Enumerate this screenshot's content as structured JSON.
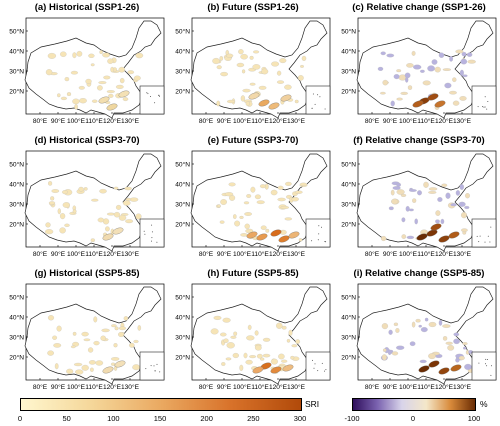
{
  "panels": [
    {
      "title": "(a) Historical (SSP1-26)",
      "scale": "sri",
      "hot": [
        {
          "x": 104,
          "y": 93,
          "c": "#efd7a0"
        },
        {
          "x": 96,
          "y": 86,
          "c": "#f3deae"
        },
        {
          "x": 116,
          "y": 80,
          "c": "#f4e1b5"
        }
      ]
    },
    {
      "title": "(b) Future (SSP1-26)",
      "scale": "sri",
      "hot": [
        {
          "x": 90,
          "y": 89,
          "c": "#e9a960"
        },
        {
          "x": 100,
          "y": 92,
          "c": "#eebb7a"
        },
        {
          "x": 112,
          "y": 84,
          "c": "#f0d09e"
        },
        {
          "x": 80,
          "y": 82,
          "c": "#f2d8aa"
        }
      ]
    },
    {
      "title": "(c) Relative change (SSP1-26)",
      "scale": "rel",
      "hot": [
        {
          "x": 84,
          "y": 87,
          "c": "#8a3d08"
        },
        {
          "x": 93,
          "y": 83,
          "c": "#a04d12"
        },
        {
          "x": 100,
          "y": 90,
          "c": "#c6742c"
        },
        {
          "x": 78,
          "y": 90,
          "c": "#b35e1c"
        }
      ]
    },
    {
      "title": "(d) Historical (SSP3-70)",
      "scale": "sri",
      "hot": [
        {
          "x": 100,
          "y": 90,
          "c": "#f1dbb0"
        },
        {
          "x": 110,
          "y": 84,
          "c": "#f3e0b8"
        }
      ]
    },
    {
      "title": "(e) Future (SSP3-70)",
      "scale": "sri",
      "hot": [
        {
          "x": 102,
          "y": 86,
          "c": "#d86c1c"
        },
        {
          "x": 110,
          "y": 92,
          "c": "#de7e2c"
        },
        {
          "x": 88,
          "y": 90,
          "c": "#e79a4f"
        },
        {
          "x": 78,
          "y": 88,
          "c": "#eaa762"
        },
        {
          "x": 120,
          "y": 88,
          "c": "#ecb576"
        }
      ]
    },
    {
      "title": "(f) Relative change (SSP3-70)",
      "scale": "rel",
      "hot": [
        {
          "x": 82,
          "y": 90,
          "c": "#6a2c04"
        },
        {
          "x": 92,
          "y": 86,
          "c": "#7d3606"
        },
        {
          "x": 104,
          "y": 92,
          "c": "#8e420c"
        },
        {
          "x": 114,
          "y": 88,
          "c": "#b05c18"
        },
        {
          "x": 96,
          "y": 80,
          "c": "#a14e12"
        }
      ]
    },
    {
      "title": "(g) Historical (SSP5-85)",
      "scale": "sri",
      "hot": [
        {
          "x": 100,
          "y": 90,
          "c": "#f1dbb0"
        },
        {
          "x": 112,
          "y": 84,
          "c": "#f3e0b8"
        }
      ]
    },
    {
      "title": "(h) Future (SSP5-85)",
      "scale": "sri",
      "hot": [
        {
          "x": 92,
          "y": 86,
          "c": "#d8701e"
        },
        {
          "x": 102,
          "y": 90,
          "c": "#e38a3c"
        },
        {
          "x": 84,
          "y": 90,
          "c": "#eba866"
        },
        {
          "x": 114,
          "y": 88,
          "c": "#eebc80"
        }
      ]
    },
    {
      "title": "(i) Relative change (SSP5-85)",
      "scale": "rel",
      "hot": [
        {
          "x": 84,
          "y": 89,
          "c": "#6a2c04"
        },
        {
          "x": 94,
          "y": 84,
          "c": "#7b3506"
        },
        {
          "x": 104,
          "y": 91,
          "c": "#93460e"
        },
        {
          "x": 116,
          "y": 88,
          "c": "#b8661e"
        }
      ]
    }
  ],
  "axes": {
    "lon_labels": [
      "80°E",
      "90°E",
      "100°E",
      "110°E",
      "120°E",
      "130°E"
    ],
    "lat_labels": [
      "50°N",
      "40°N",
      "30°N",
      "20°N"
    ]
  },
  "colorbars": {
    "sri": {
      "unit": "SRI",
      "ticks": [
        "0",
        "50",
        "100",
        "150",
        "200",
        "250",
        "300"
      ],
      "min": 0,
      "max": 300,
      "colors": [
        "#fff7cf",
        "#f5d79a",
        "#eaa961",
        "#d8722a",
        "#b14a0a"
      ]
    },
    "rel": {
      "unit": "%",
      "ticks": [
        "-100",
        "0",
        "100"
      ],
      "min": -100,
      "max": 100,
      "colors": [
        "#2f0f5c",
        "#7b63b0",
        "#d8d4ea",
        "#f4e7c9",
        "#d88a3a",
        "#6a2c04"
      ]
    }
  },
  "palette": {
    "low_sri": "#f6e4b6",
    "low_rel_blue": "#b8b3de",
    "low_rel_orange": "#f0ddb8"
  }
}
